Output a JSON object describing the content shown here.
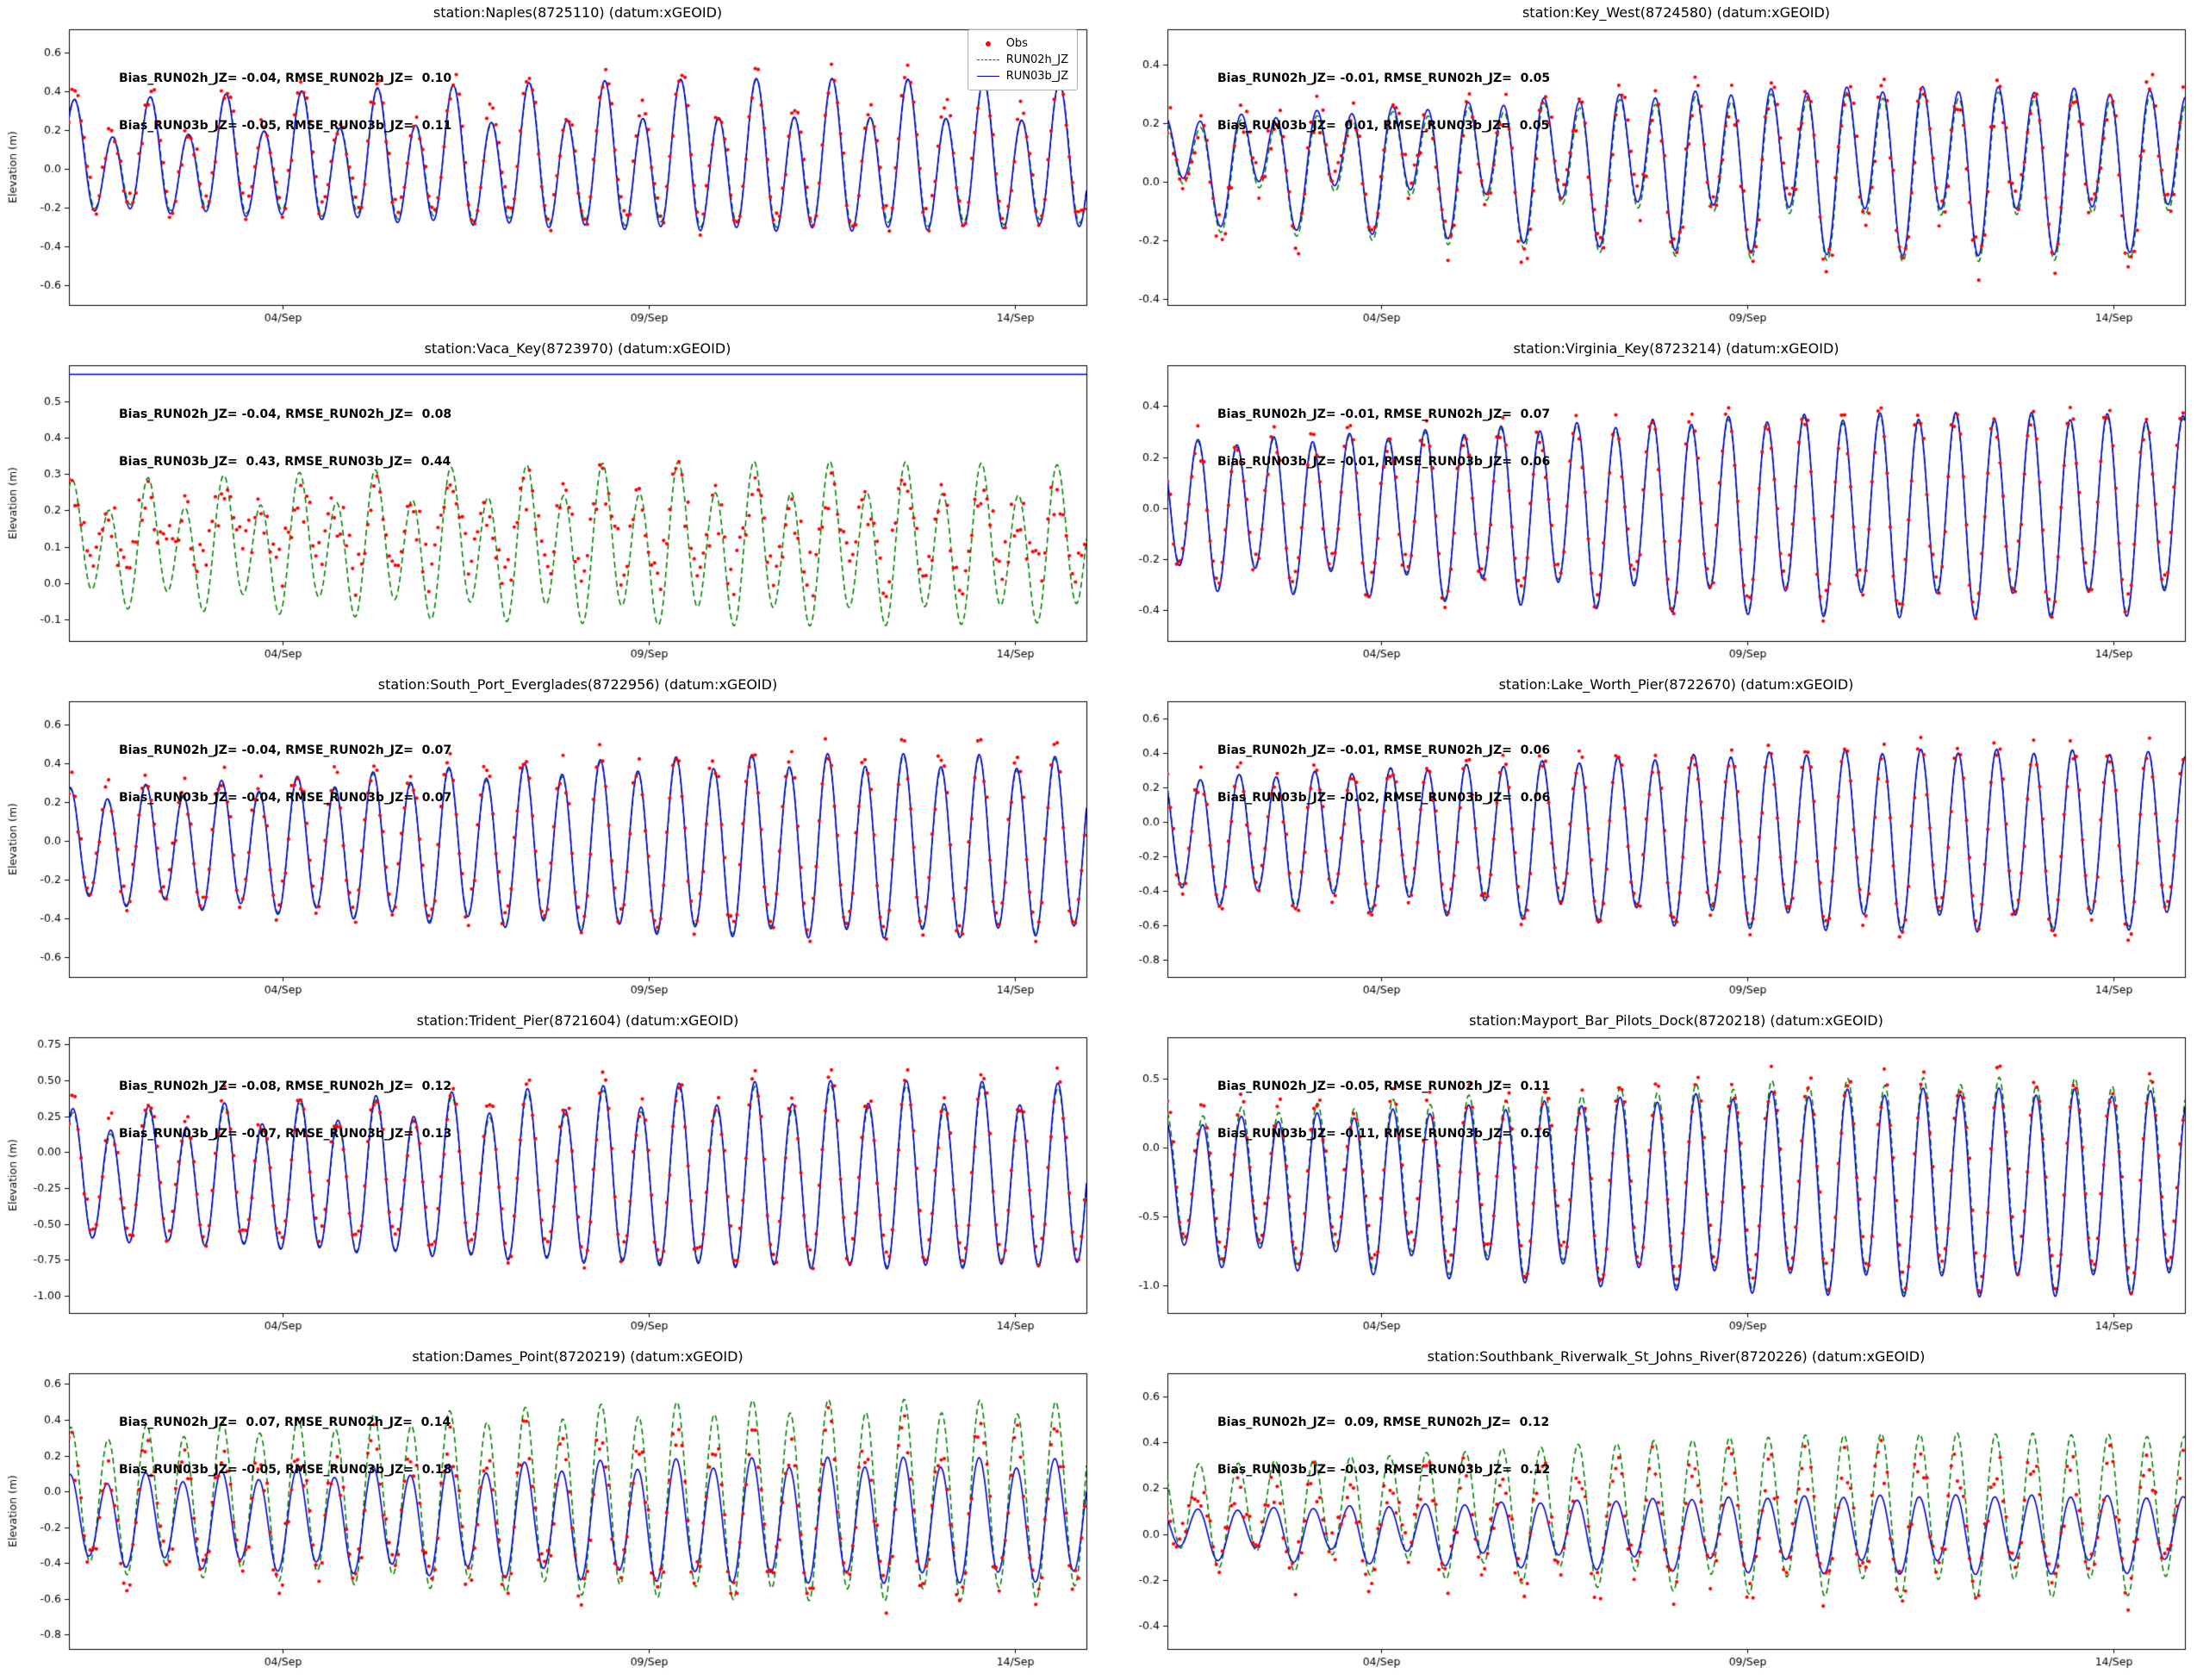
{
  "legend": {
    "items": [
      {
        "label": "Obs",
        "color": "#ff0000",
        "style": "scatter"
      },
      {
        "label": "RUN02h_JZ",
        "color": "#008000",
        "style": "dashed"
      },
      {
        "label": "RUN03b_JZ",
        "color": "#0000cd",
        "style": "solid"
      }
    ]
  },
  "x_axis": {
    "t_min": 0,
    "t_max": 13.9,
    "period_days": 0.5175,
    "ticks": [
      {
        "t": 2.92,
        "label": "04/Sep"
      },
      {
        "t": 7.92,
        "label": "09/Sep"
      },
      {
        "t": 12.92,
        "label": "14/Sep"
      }
    ]
  },
  "chart_data": [
    {
      "type": "line+scatter",
      "title": "station:Naples(8725110) (datum:xGEOID)",
      "ylabel": "Elevation (m)",
      "annotation_lines": [
        "Bias_RUN02h_JZ= -0.04, RMSE_RUN02h_JZ=  0.10",
        "Bias_RUN03b_JZ= -0.05, RMSE_RUN03b_JZ=  0.11"
      ],
      "ylim": [
        -0.7,
        0.72
      ],
      "yticks": [
        -0.6,
        -0.4,
        -0.2,
        0.0,
        0.2,
        0.4,
        0.6
      ],
      "ytick_labels": [
        "-0.6",
        "-0.4",
        "-0.2",
        "0.0",
        "0.2",
        "0.4",
        "0.6"
      ],
      "show_legend": true,
      "series": [
        {
          "name": "RUN02h_JZ",
          "plot": "line",
          "dash": true,
          "color": "#008000",
          "mean": 0.04,
          "amp": 0.26,
          "m": 0.25,
          "t0": 3,
          "diurnal": 0.1,
          "phase": 0.6,
          "phase2": 1.2
        },
        {
          "name": "RUN03b_JZ",
          "plot": "line",
          "dash": false,
          "color": "#0000cd",
          "mean": 0.03,
          "amp": 0.27,
          "m": 0.25,
          "t0": 3,
          "diurnal": 0.1,
          "phase": 0.65,
          "phase2": 1.2
        },
        {
          "name": "Obs",
          "plot": "scatter",
          "color": "#ff0000",
          "mean": 0.07,
          "amp": 0.27,
          "m": 0.25,
          "t0": 3,
          "diurnal": 0.1,
          "phase": 0.6,
          "phase2": 1.2,
          "noise": 0.05,
          "seed": 101
        }
      ]
    },
    {
      "type": "line+scatter",
      "title": "station:Key_West(8724580) (datum:xGEOID)",
      "ylabel": "",
      "annotation_lines": [
        "Bias_RUN02h_JZ= -0.01, RMSE_RUN02h_JZ=  0.05",
        "Bias_RUN03b_JZ=  0.01, RMSE_RUN03b_JZ=  0.05"
      ],
      "ylim": [
        -0.42,
        0.52
      ],
      "yticks": [
        -0.4,
        -0.2,
        0.0,
        0.2,
        0.4
      ],
      "ytick_labels": [
        "-0.4",
        "-0.2",
        "0.0",
        "0.2",
        "0.4"
      ],
      "show_legend": false,
      "series": [
        {
          "name": "RUN02h_JZ",
          "plot": "line",
          "dash": true,
          "color": "#008000",
          "mean": 0.05,
          "amp": 0.18,
          "m": 0.35,
          "t0": 3.5,
          "diurnal": 0.08,
          "phase": 2.1,
          "phase2": 0.4
        },
        {
          "name": "RUN03b_JZ",
          "plot": "line",
          "dash": false,
          "color": "#0000cd",
          "mean": 0.07,
          "amp": 0.18,
          "m": 0.35,
          "t0": 3.5,
          "diurnal": 0.08,
          "phase": 2.15,
          "phase2": 0.4
        },
        {
          "name": "Obs",
          "plot": "scatter",
          "color": "#ff0000",
          "mean": 0.06,
          "amp": 0.19,
          "m": 0.35,
          "t0": 3.5,
          "diurnal": 0.09,
          "phase": 2.1,
          "phase2": 0.4,
          "noise": 0.05,
          "seed": 202
        }
      ]
    },
    {
      "type": "line+scatter",
      "title": "station:Vaca_Key(8723970) (datum:xGEOID)",
      "ylabel": "Elevation (m)",
      "annotation_lines": [
        "Bias_RUN02h_JZ= -0.04, RMSE_RUN02h_JZ=  0.08",
        "Bias_RUN03b_JZ=  0.43, RMSE_RUN03b_JZ=  0.44"
      ],
      "ylim": [
        -0.16,
        0.6
      ],
      "yticks": [
        -0.1,
        0.0,
        0.1,
        0.2,
        0.3,
        0.4,
        0.5
      ],
      "ytick_labels": [
        "-0.1",
        "0.0",
        "0.1",
        "0.2",
        "0.3",
        "0.4",
        "0.5"
      ],
      "show_legend": false,
      "series": [
        {
          "name": "RUN02h_JZ",
          "plot": "line",
          "dash": true,
          "color": "#008000",
          "mean": 0.1,
          "amp": 0.16,
          "m": 0.2,
          "t0": 3,
          "diurnal": 0.05,
          "phase": 1.1,
          "phase2": 0.8
        },
        {
          "name": "RUN03b_JZ",
          "plot": "hline",
          "dash": false,
          "color": "#0000cd",
          "value": 0.575
        },
        {
          "name": "Obs",
          "plot": "scatter",
          "color": "#ff0000",
          "mean": 0.14,
          "amp": 0.08,
          "m": 0.3,
          "t0": 3,
          "diurnal": 0.04,
          "phase": 1.1,
          "phase2": 0.8,
          "noise": 0.05,
          "seed": 303
        }
      ]
    },
    {
      "type": "line+scatter",
      "title": "station:Virginia_Key(8723214) (datum:xGEOID)",
      "ylabel": "",
      "annotation_lines": [
        "Bias_RUN02h_JZ= -0.01, RMSE_RUN02h_JZ=  0.07",
        "Bias_RUN03b_JZ= -0.01, RMSE_RUN03b_JZ=  0.06"
      ],
      "ylim": [
        -0.52,
        0.56
      ],
      "yticks": [
        -0.4,
        -0.2,
        0.0,
        0.2,
        0.4
      ],
      "ytick_labels": [
        "-0.4",
        "-0.2",
        "0.0",
        "0.2",
        "0.4"
      ],
      "show_legend": false,
      "series": [
        {
          "name": "RUN02h_JZ",
          "plot": "line",
          "dash": true,
          "color": "#008000",
          "mean": -0.01,
          "amp": 0.3,
          "m": 0.2,
          "t0": 4,
          "diurnal": 0.05,
          "phase": 2.7,
          "phase2": 0.3
        },
        {
          "name": "RUN03b_JZ",
          "plot": "line",
          "dash": false,
          "color": "#0000cd",
          "mean": -0.01,
          "amp": 0.31,
          "m": 0.2,
          "t0": 4,
          "diurnal": 0.05,
          "phase": 2.7,
          "phase2": 0.3
        },
        {
          "name": "Obs",
          "plot": "scatter",
          "color": "#ff0000",
          "mean": 0.0,
          "amp": 0.3,
          "m": 0.2,
          "t0": 4,
          "diurnal": 0.05,
          "phase": 2.7,
          "phase2": 0.3,
          "noise": 0.04,
          "seed": 404
        }
      ]
    },
    {
      "type": "line+scatter",
      "title": "station:South_Port_Everglades(8722956) (datum:xGEOID)",
      "ylabel": "Elevation (m)",
      "annotation_lines": [
        "Bias_RUN02h_JZ= -0.04, RMSE_RUN02h_JZ=  0.07",
        "Bias_RUN03b_JZ= -0.04, RMSE_RUN03b_JZ=  0.07"
      ],
      "ylim": [
        -0.7,
        0.72
      ],
      "yticks": [
        -0.6,
        -0.4,
        -0.2,
        0.0,
        0.2,
        0.4,
        0.6
      ],
      "ytick_labels": [
        "-0.6",
        "-0.4",
        "-0.2",
        "0.0",
        "0.2",
        "0.4",
        "0.6"
      ],
      "show_legend": false,
      "series": [
        {
          "name": "RUN02h_JZ",
          "plot": "line",
          "dash": true,
          "color": "#008000",
          "mean": -0.03,
          "amp": 0.34,
          "m": 0.28,
          "t0": 4,
          "diurnal": 0.04,
          "phase": 1.4,
          "phase2": 0.9
        },
        {
          "name": "RUN03b_JZ",
          "plot": "line",
          "dash": false,
          "color": "#0000cd",
          "mean": -0.03,
          "amp": 0.35,
          "m": 0.28,
          "t0": 4,
          "diurnal": 0.04,
          "phase": 1.42,
          "phase2": 0.9
        },
        {
          "name": "Obs",
          "plot": "scatter",
          "color": "#ff0000",
          "mean": 0.0,
          "amp": 0.36,
          "m": 0.28,
          "t0": 4,
          "diurnal": 0.04,
          "phase": 1.4,
          "phase2": 0.9,
          "noise": 0.05,
          "seed": 505
        }
      ]
    },
    {
      "type": "line+scatter",
      "title": "station:Lake_Worth_Pier(8722670) (datum:xGEOID)",
      "ylabel": "",
      "annotation_lines": [
        "Bias_RUN02h_JZ= -0.01, RMSE_RUN02h_JZ=  0.06",
        "Bias_RUN03b_JZ= -0.02, RMSE_RUN03b_JZ=  0.06"
      ],
      "ylim": [
        -0.9,
        0.7
      ],
      "yticks": [
        -0.8,
        -0.6,
        -0.4,
        -0.2,
        0.0,
        0.2,
        0.4,
        0.6
      ],
      "ytick_labels": [
        "-0.8",
        "-0.6",
        "-0.4",
        "-0.2",
        "0.0",
        "0.2",
        "0.4",
        "0.6"
      ],
      "show_legend": false,
      "series": [
        {
          "name": "RUN02h_JZ",
          "plot": "line",
          "dash": true,
          "color": "#008000",
          "mean": -0.08,
          "amp": 0.4,
          "m": 0.22,
          "t0": 4,
          "diurnal": 0.05,
          "phase": 2.3,
          "phase2": 0.6
        },
        {
          "name": "RUN03b_JZ",
          "plot": "line",
          "dash": false,
          "color": "#0000cd",
          "mean": -0.09,
          "amp": 0.41,
          "m": 0.22,
          "t0": 4,
          "diurnal": 0.05,
          "phase": 2.32,
          "phase2": 0.6
        },
        {
          "name": "Obs",
          "plot": "scatter",
          "color": "#ff0000",
          "mean": -0.08,
          "amp": 0.42,
          "m": 0.22,
          "t0": 4,
          "diurnal": 0.05,
          "phase": 2.3,
          "phase2": 0.6,
          "noise": 0.05,
          "seed": 606
        }
      ]
    },
    {
      "type": "line+scatter",
      "title": "station:Trident_Pier(8721604) (datum:xGEOID)",
      "ylabel": "Elevation (m)",
      "annotation_lines": [
        "Bias_RUN02h_JZ= -0.08, RMSE_RUN02h_JZ=  0.12",
        "Bias_RUN03b_JZ= -0.07, RMSE_RUN03b_JZ=  0.13"
      ],
      "ylim": [
        -1.12,
        0.8
      ],
      "yticks": [
        -1.0,
        -0.75,
        -0.5,
        -0.25,
        0.0,
        0.25,
        0.5,
        0.75
      ],
      "ytick_labels": [
        "-1.00",
        "-0.75",
        "-0.50",
        "-0.25",
        "0.00",
        "0.25",
        "0.50",
        "0.75"
      ],
      "show_legend": false,
      "series": [
        {
          "name": "RUN02h_JZ",
          "plot": "line",
          "dash": true,
          "color": "#008000",
          "mean": -0.2,
          "amp": 0.48,
          "m": 0.22,
          "t0": 4,
          "diurnal": 0.08,
          "phase": 0.9,
          "phase2": 1.1
        },
        {
          "name": "RUN03b_JZ",
          "plot": "line",
          "dash": false,
          "color": "#0000cd",
          "mean": -0.19,
          "amp": 0.5,
          "m": 0.22,
          "t0": 4,
          "diurnal": 0.08,
          "phase": 0.92,
          "phase2": 1.1
        },
        {
          "name": "Obs",
          "plot": "scatter",
          "color": "#ff0000",
          "mean": -0.15,
          "amp": 0.5,
          "m": 0.22,
          "t0": 4,
          "diurnal": 0.08,
          "phase": 0.9,
          "phase2": 1.1,
          "noise": 0.06,
          "seed": 707
        }
      ]
    },
    {
      "type": "line+scatter",
      "title": "station:Mayport_Bar_Pilots_Dock(8720218) (datum:xGEOID)",
      "ylabel": "",
      "annotation_lines": [
        "Bias_RUN02h_JZ= -0.05, RMSE_RUN02h_JZ=  0.11",
        "Bias_RUN03b_JZ= -0.11, RMSE_RUN03b_JZ=  0.16"
      ],
      "ylim": [
        -1.2,
        0.8
      ],
      "yticks": [
        -1.0,
        -0.5,
        0.0,
        0.5
      ],
      "ytick_labels": [
        "-1.0",
        "-0.5",
        "0.0",
        "0.5"
      ],
      "show_legend": false,
      "series": [
        {
          "name": "RUN02h_JZ",
          "plot": "line",
          "dash": true,
          "color": "#008000",
          "mean": -0.25,
          "amp": 0.6,
          "m": 0.22,
          "t0": 4,
          "diurnal": 0.08,
          "phase": 1.9,
          "phase2": 0.5
        },
        {
          "name": "RUN03b_JZ",
          "plot": "line",
          "dash": false,
          "color": "#0000cd",
          "mean": -0.3,
          "amp": 0.58,
          "m": 0.22,
          "t0": 4,
          "diurnal": 0.08,
          "phase": 1.95,
          "phase2": 0.5
        },
        {
          "name": "Obs",
          "plot": "scatter",
          "color": "#ff0000",
          "mean": -0.2,
          "amp": 0.58,
          "m": 0.22,
          "t0": 4,
          "diurnal": 0.08,
          "phase": 1.9,
          "phase2": 0.5,
          "noise": 0.07,
          "seed": 808
        }
      ]
    },
    {
      "type": "line+scatter",
      "title": "station:Dames_Point(8720219) (datum:xGEOID)",
      "ylabel": "Elevation (m)",
      "annotation_lines": [
        "Bias_RUN02h_JZ=  0.07, RMSE_RUN02h_JZ=  0.14",
        "Bias_RUN03b_JZ= -0.05, RMSE_RUN03b_JZ=  0.18"
      ],
      "ylim": [
        -0.88,
        0.66
      ],
      "yticks": [
        -0.8,
        -0.6,
        -0.4,
        -0.2,
        0.0,
        0.2,
        0.4,
        0.6
      ],
      "ytick_labels": [
        "-0.8",
        "-0.6",
        "-0.4",
        "-0.2",
        "0.0",
        "0.2",
        "0.4",
        "0.6"
      ],
      "show_legend": false,
      "series": [
        {
          "name": "RUN02h_JZ",
          "plot": "line",
          "dash": true,
          "color": "#008000",
          "mean": -0.05,
          "amp": 0.44,
          "m": 0.2,
          "t0": 4,
          "diurnal": 0.05,
          "phase": 1.3,
          "phase2": 0.7
        },
        {
          "name": "RUN03b_JZ",
          "plot": "line",
          "dash": false,
          "color": "#0000cd",
          "mean": -0.16,
          "amp": 0.27,
          "m": 0.2,
          "t0": 4,
          "diurnal": 0.04,
          "phase": 1.45,
          "phase2": 0.7
        },
        {
          "name": "Obs",
          "plot": "scatter",
          "color": "#ff0000",
          "mean": -0.12,
          "amp": 0.36,
          "m": 0.2,
          "t0": 4,
          "diurnal": 0.06,
          "phase": 1.3,
          "phase2": 0.7,
          "noise": 0.08,
          "seed": 909
        }
      ]
    },
    {
      "type": "line+scatter",
      "title": "station:Southbank_Riverwalk_St_Johns_River(8720226) (datum:xGEOID)",
      "ylabel": "",
      "annotation_lines": [
        "Bias_RUN02h_JZ=  0.09, RMSE_RUN02h_JZ=  0.12",
        "Bias_RUN03b_JZ= -0.03, RMSE_RUN03b_JZ=  0.12"
      ],
      "ylim": [
        -0.5,
        0.7
      ],
      "yticks": [
        -0.4,
        -0.2,
        0.0,
        0.2,
        0.4,
        0.6
      ],
      "ytick_labels": [
        "-0.4",
        "-0.2",
        "0.0",
        "0.2",
        "0.4",
        "0.6"
      ],
      "show_legend": false,
      "series": [
        {
          "name": "RUN02h_JZ",
          "plot": "line",
          "dash": true,
          "color": "#008000",
          "mean": 0.1,
          "amp": 0.26,
          "m": 0.3,
          "t0": 4,
          "diurnal": 0.04,
          "phase": 2.5,
          "phase2": 0.4
        },
        {
          "name": "RUN03b_JZ",
          "plot": "line",
          "dash": false,
          "color": "#0000cd",
          "mean": 0.01,
          "amp": 0.12,
          "m": 0.3,
          "t0": 4,
          "diurnal": 0.03,
          "phase": 2.65,
          "phase2": 0.4
        },
        {
          "name": "Obs",
          "plot": "scatter",
          "color": "#ff0000",
          "mean": 0.05,
          "amp": 0.2,
          "m": 0.3,
          "t0": 4,
          "diurnal": 0.05,
          "phase": 2.5,
          "phase2": 0.4,
          "noise": 0.07,
          "seed": 1001
        }
      ]
    }
  ]
}
